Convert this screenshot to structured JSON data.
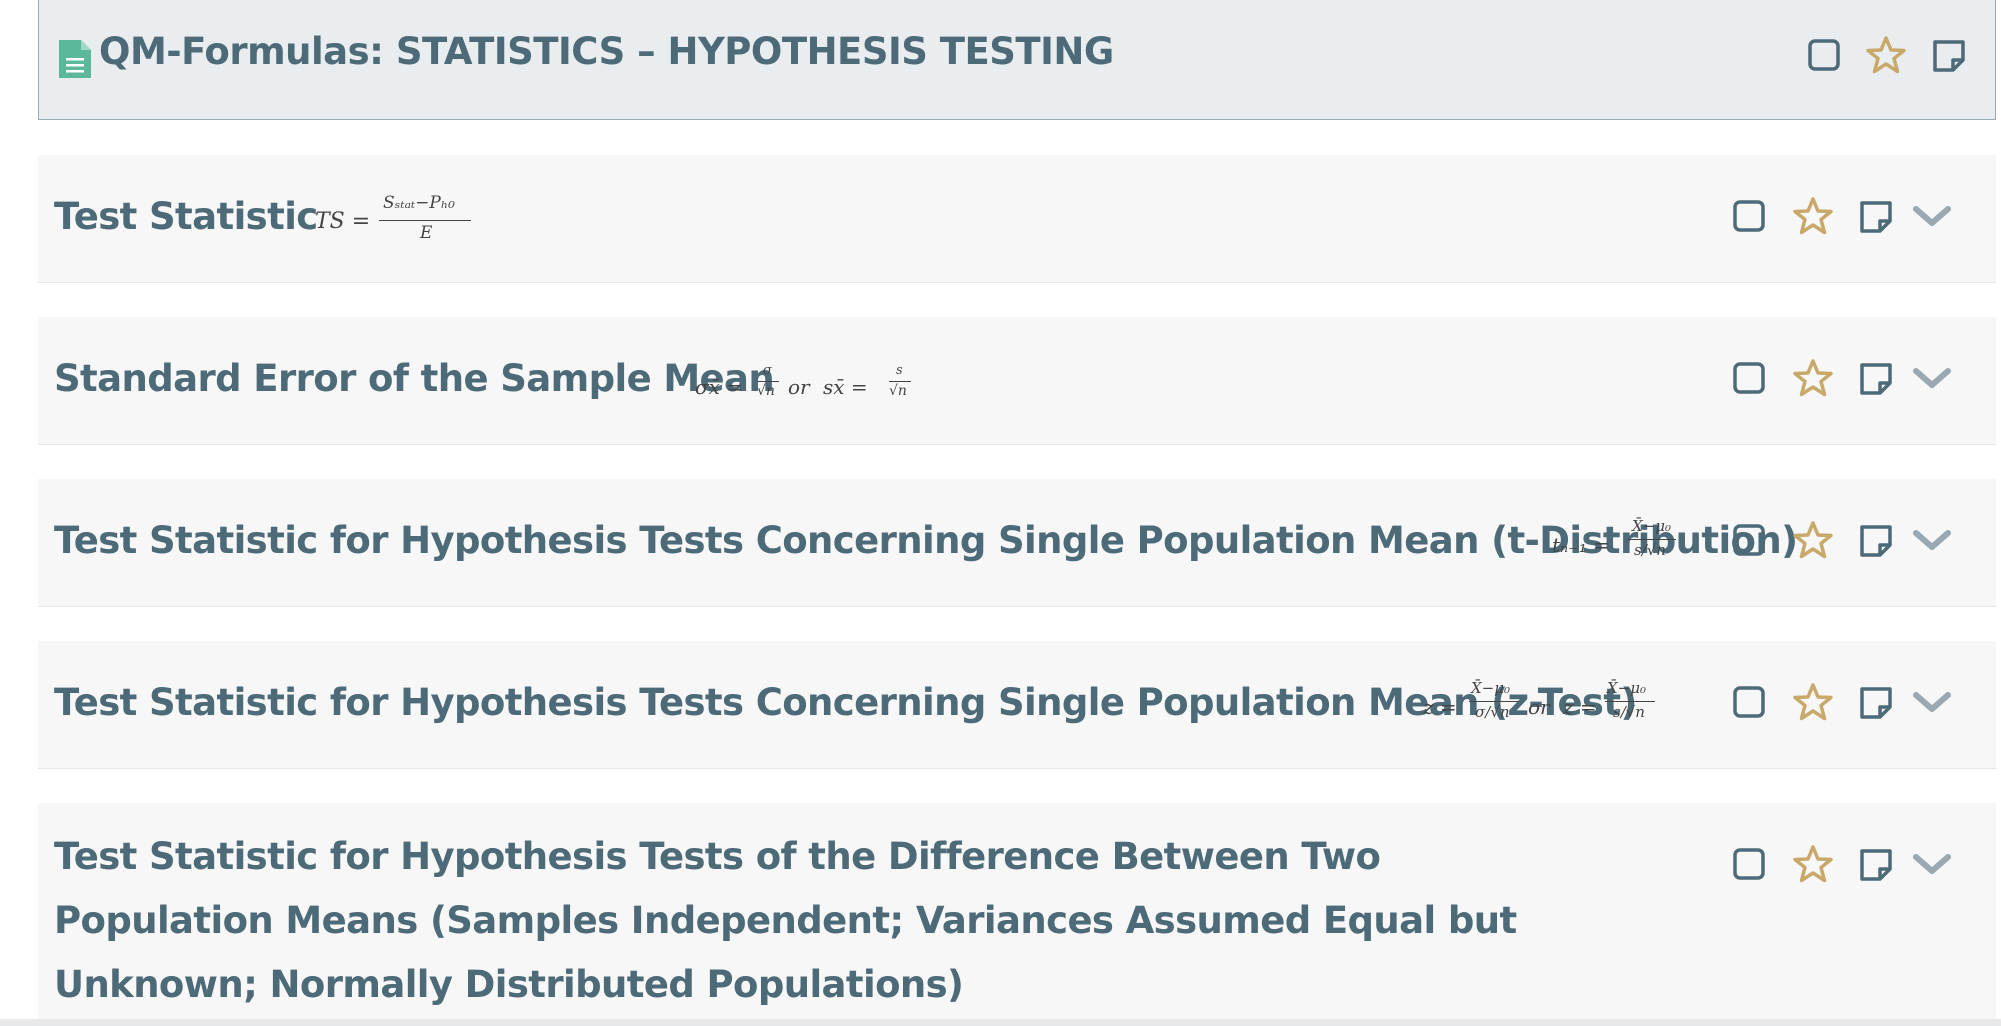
{
  "header": {
    "title": "QM-Formulas: STATISTICS – HYPOTHESIS TESTING"
  },
  "rows": [
    {
      "title": "Test Statistic",
      "formula": {
        "lhs": "TS =",
        "num": "Sₛₜₐₜ−Pₕ₀",
        "den": "E"
      }
    },
    {
      "title": "Standard Error of the Sample Mean",
      "formula": {
        "lhs1": "σx̄ =",
        "num1": "σ",
        "den1": "√n",
        "or": "or",
        "lhs2": "sx̄ =",
        "num2": "s",
        "den2": "√n"
      }
    },
    {
      "title": "Test Statistic for Hypothesis Tests Concerning Single Population Mean (t-Distribution)",
      "formula": {
        "lhs": "tₙ₋₁ =",
        "num": "X̄−μ₀",
        "den": "s/√n"
      }
    },
    {
      "title": "Test Statistic for Hypothesis Tests Concerning Single Population Mean (z-Test)",
      "formula": {
        "lhs1": "z =",
        "num1": "X̄−μ₀",
        "den1": "σ/√n",
        "or": "or",
        "lhs2": "z =",
        "num2": "X̄−μ₀",
        "den2": "s/√n"
      }
    },
    {
      "title": "Test Statistic for Hypothesis Tests of the Difference Between Two Population Means (Samples Independent; Variances Assumed Equal but Unknown; Normally Distributed Populations)"
    }
  ],
  "icons": {
    "checkbox": "checkbox-icon",
    "star": "star-icon",
    "note": "note-icon",
    "chevron": "chevron-down-icon",
    "document": "document-icon"
  },
  "colors": {
    "title": "#4d6a78",
    "icon": "#4d6a78",
    "star": "#c9a96a",
    "chevron": "#9aa9b1",
    "doc_icon": "#5cb89a",
    "header_bg": "#e9edef",
    "row_bg": "#f7f7f7"
  }
}
